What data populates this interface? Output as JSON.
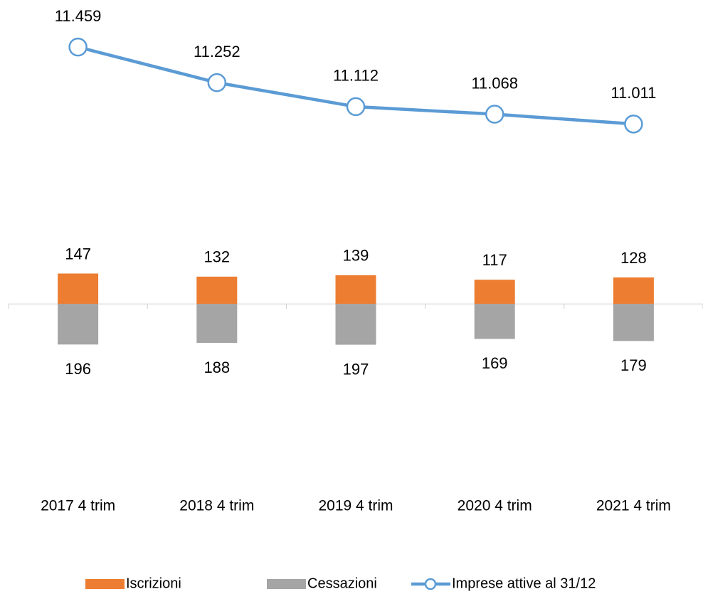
{
  "chart_data": {
    "type": "bar-line",
    "categories": [
      "2017 4 trim",
      "2018 4 trim",
      "2019 4 trim",
      "2020 4 trim",
      "2021 4 trim"
    ],
    "series": [
      {
        "name": "Iscrizioni",
        "type": "bar",
        "color": "#ed7d31",
        "values": [
          147,
          132,
          139,
          117,
          128
        ]
      },
      {
        "name": "Cessazioni",
        "type": "bar",
        "color": "#a5a5a5",
        "values": [
          -196,
          -188,
          -197,
          -169,
          -179
        ],
        "value_labels": [
          "196",
          "188",
          "197",
          "169",
          "179"
        ]
      },
      {
        "name": "Imprese attive al 31/12",
        "type": "line",
        "axis": "y2",
        "color": "#5b9bd5",
        "values": [
          11459,
          11252,
          11112,
          11068,
          11011
        ],
        "value_labels": [
          "11.459",
          "11.252",
          "11.112",
          "11.068",
          "11.011"
        ]
      }
    ],
    "ylim": [
      -800,
      1400
    ],
    "y2lim": [
      9000,
      11650
    ],
    "legend": "bottom"
  }
}
